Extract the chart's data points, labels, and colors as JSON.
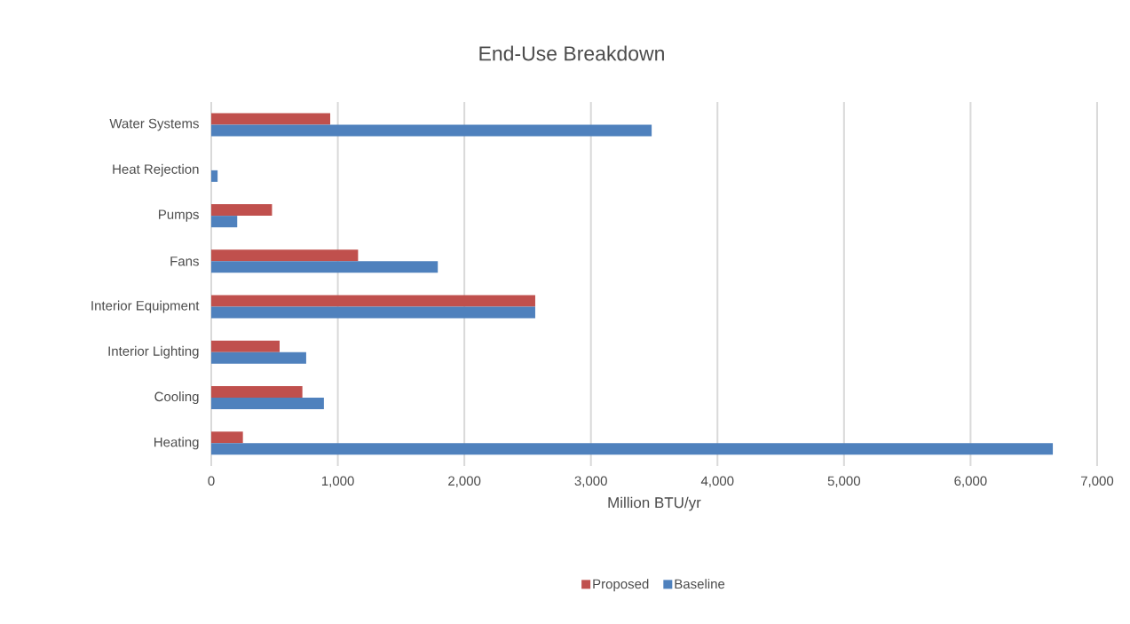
{
  "chart_data": {
    "type": "bar",
    "orientation": "horizontal",
    "title": "End-Use Breakdown",
    "xlabel": "Million BTU/yr",
    "categories": [
      "Water Systems",
      "Heat Rejection",
      "Pumps",
      "Fans",
      "Interior Equipment",
      "Interior Lighting",
      "Cooling",
      "Heating"
    ],
    "series": [
      {
        "name": "Proposed",
        "color": "#c0504d",
        "values": [
          940,
          0,
          480,
          1160,
          2560,
          540,
          720,
          250
        ]
      },
      {
        "name": "Baseline",
        "color": "#4f81bd",
        "values": [
          3480,
          50,
          205,
          1790,
          2560,
          750,
          890,
          6650
        ]
      }
    ],
    "xlim": [
      0,
      7000
    ],
    "xticks": [
      {
        "value": 0,
        "label": "0"
      },
      {
        "value": 1000,
        "label": "1,000"
      },
      {
        "value": 2000,
        "label": "2,000"
      },
      {
        "value": 3000,
        "label": "3,000"
      },
      {
        "value": 4000,
        "label": "4,000"
      },
      {
        "value": 5000,
        "label": "5,000"
      },
      {
        "value": 6000,
        "label": "6,000"
      },
      {
        "value": 7000,
        "label": "7,000"
      }
    ],
    "grid": "x",
    "legend": "bottom"
  }
}
